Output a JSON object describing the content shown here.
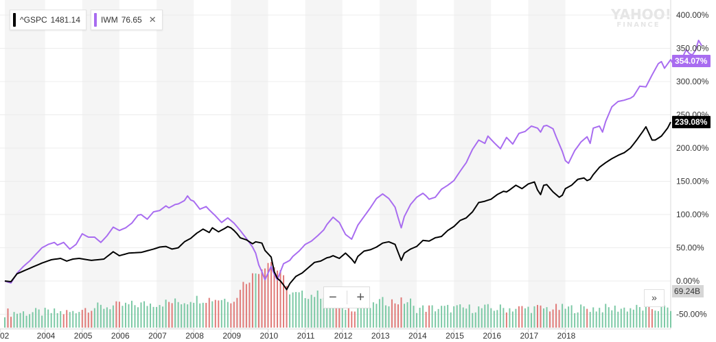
{
  "legend": {
    "items": [
      {
        "ticker": "^GSPC",
        "value": "1481.14",
        "color": "#000000",
        "removable": false
      },
      {
        "ticker": "IWM",
        "value": "76.65",
        "color": "#a86cf0",
        "removable": true
      }
    ],
    "close_icon": "close-icon"
  },
  "logo": {
    "line1": "YAHOO!",
    "line2": "FINANCE"
  },
  "zoom": {
    "minus": "−",
    "plus": "+"
  },
  "scroll_label": "»",
  "last_labels": {
    "iwm": "354.07%",
    "gspc": "239.08%",
    "volume": "69.24B"
  },
  "chart_data": {
    "type": "line",
    "x_start": "2002-12",
    "x_end": "2018-06",
    "x_interval": "month",
    "x_tick_labels": [
      "02",
      "2004",
      "2005",
      "2006",
      "2007",
      "2008",
      "2009",
      "2010",
      "2011",
      "2012",
      "2013",
      "2014",
      "2015",
      "2016",
      "2017",
      "2018"
    ],
    "y_tick_labels": [
      "400.00%",
      "350.00%",
      "300.00%",
      "250.00%",
      "200.00%",
      "150.00%",
      "100.00%",
      "50.00%",
      "0.00%",
      "-50.00%"
    ],
    "ylim": [
      -50,
      400
    ],
    "y_unit": "%",
    "series": [
      {
        "name": "^GSPC",
        "color": "#000000",
        "anchors": [
          [
            0,
            0
          ],
          [
            2,
            -1
          ],
          [
            4,
            11
          ],
          [
            6,
            15
          ],
          [
            8,
            19
          ],
          [
            12,
            27
          ],
          [
            15,
            32
          ],
          [
            18,
            34
          ],
          [
            20,
            30
          ],
          [
            22,
            33
          ],
          [
            24,
            34
          ],
          [
            28,
            31
          ],
          [
            32,
            33
          ],
          [
            35,
            44
          ],
          [
            37,
            38
          ],
          [
            40,
            42
          ],
          [
            44,
            43
          ],
          [
            48,
            48
          ],
          [
            50,
            51
          ],
          [
            52,
            52
          ],
          [
            54,
            48
          ],
          [
            56,
            50
          ],
          [
            58,
            59
          ],
          [
            60,
            64
          ],
          [
            62,
            72
          ],
          [
            64,
            78
          ],
          [
            66,
            73
          ],
          [
            67,
            80
          ],
          [
            69,
            74
          ],
          [
            71,
            79
          ],
          [
            72,
            82
          ],
          [
            73,
            80
          ],
          [
            74,
            76
          ],
          [
            75,
            71
          ],
          [
            76,
            65
          ],
          [
            78,
            62
          ],
          [
            80,
            56
          ],
          [
            81,
            59
          ],
          [
            83,
            57
          ],
          [
            84,
            46
          ],
          [
            86,
            36
          ],
          [
            87,
            14
          ],
          [
            88,
            4
          ],
          [
            89,
            0
          ],
          [
            90,
            -6
          ],
          [
            91,
            -13
          ],
          [
            92,
            -4
          ],
          [
            94,
            7
          ],
          [
            96,
            12
          ],
          [
            98,
            20
          ],
          [
            100,
            28
          ],
          [
            102,
            30
          ],
          [
            104,
            35
          ],
          [
            105,
            36
          ],
          [
            106,
            38
          ],
          [
            108,
            34
          ],
          [
            110,
            42
          ],
          [
            112,
            33
          ],
          [
            113,
            27
          ],
          [
            114,
            37
          ],
          [
            116,
            45
          ],
          [
            118,
            47
          ],
          [
            120,
            51
          ],
          [
            122,
            57
          ],
          [
            124,
            59
          ],
          [
            126,
            55
          ],
          [
            127,
            43
          ],
          [
            128,
            31
          ],
          [
            129,
            42
          ],
          [
            131,
            48
          ],
          [
            133,
            52
          ],
          [
            135,
            61
          ],
          [
            137,
            60
          ],
          [
            139,
            65
          ],
          [
            141,
            67
          ],
          [
            143,
            76
          ],
          [
            145,
            82
          ],
          [
            147,
            91
          ],
          [
            149,
            95
          ],
          [
            151,
            104
          ],
          [
            153,
            118
          ],
          [
            155,
            120
          ],
          [
            157,
            123
          ],
          [
            159,
            130
          ],
          [
            161,
            135
          ],
          [
            162,
            134
          ],
          [
            163,
            137
          ],
          [
            165,
            144
          ],
          [
            167,
            139
          ],
          [
            169,
            146
          ],
          [
            171,
            149
          ],
          [
            172,
            137
          ],
          [
            173,
            130
          ],
          [
            174,
            144
          ],
          [
            175,
            145
          ],
          [
            177,
            134
          ],
          [
            179,
            126
          ],
          [
            180,
            129
          ],
          [
            181,
            139
          ],
          [
            183,
            144
          ],
          [
            185,
            153
          ],
          [
            187,
            155
          ],
          [
            188,
            151
          ],
          [
            189,
            153
          ],
          [
            190,
            160
          ],
          [
            192,
            171
          ],
          [
            194,
            178
          ],
          [
            196,
            184
          ],
          [
            198,
            189
          ],
          [
            200,
            193
          ],
          [
            202,
            200
          ],
          [
            204,
            212
          ],
          [
            206,
            225
          ],
          [
            207,
            232
          ],
          [
            209,
            212
          ],
          [
            210,
            212
          ],
          [
            212,
            218
          ],
          [
            214,
            230
          ],
          [
            215,
            239.08
          ]
        ]
      },
      {
        "name": "IWM",
        "color": "#a86cf0",
        "anchors": [
          [
            0,
            0
          ],
          [
            2,
            -3
          ],
          [
            4,
            12
          ],
          [
            6,
            22
          ],
          [
            8,
            30
          ],
          [
            10,
            40
          ],
          [
            12,
            50
          ],
          [
            14,
            55
          ],
          [
            16,
            58
          ],
          [
            17,
            54
          ],
          [
            19,
            58
          ],
          [
            21,
            48
          ],
          [
            23,
            55
          ],
          [
            25,
            71
          ],
          [
            27,
            66
          ],
          [
            29,
            66
          ],
          [
            31,
            58
          ],
          [
            33,
            68
          ],
          [
            35,
            81
          ],
          [
            37,
            76
          ],
          [
            39,
            80
          ],
          [
            41,
            87
          ],
          [
            43,
            99
          ],
          [
            44,
            100
          ],
          [
            46,
            93
          ],
          [
            48,
            104
          ],
          [
            50,
            106
          ],
          [
            52,
            113
          ],
          [
            53,
            110
          ],
          [
            55,
            115
          ],
          [
            56,
            116
          ],
          [
            58,
            121
          ],
          [
            59,
            128
          ],
          [
            60,
            122
          ],
          [
            61,
            120
          ],
          [
            63,
            108
          ],
          [
            65,
            112
          ],
          [
            66,
            107
          ],
          [
            68,
            98
          ],
          [
            70,
            88
          ],
          [
            72,
            95
          ],
          [
            74,
            87
          ],
          [
            76,
            76
          ],
          [
            78,
            64
          ],
          [
            80,
            51
          ],
          [
            81,
            42
          ],
          [
            82,
            24
          ],
          [
            83,
            14
          ],
          [
            84,
            2
          ],
          [
            85,
            12
          ],
          [
            86,
            22
          ],
          [
            87,
            10
          ],
          [
            88,
            2
          ],
          [
            90,
            26
          ],
          [
            92,
            31
          ],
          [
            93,
            37
          ],
          [
            95,
            45
          ],
          [
            97,
            55
          ],
          [
            99,
            60
          ],
          [
            101,
            68
          ],
          [
            103,
            77
          ],
          [
            104,
            85
          ],
          [
            106,
            96
          ],
          [
            108,
            88
          ],
          [
            110,
            70
          ],
          [
            112,
            63
          ],
          [
            114,
            84
          ],
          [
            116,
            97
          ],
          [
            118,
            110
          ],
          [
            120,
            124
          ],
          [
            122,
            131
          ],
          [
            124,
            124
          ],
          [
            126,
            111
          ],
          [
            127,
            95
          ],
          [
            128,
            80
          ],
          [
            129,
            97
          ],
          [
            131,
            115
          ],
          [
            133,
            126
          ],
          [
            135,
            132
          ],
          [
            136,
            128
          ],
          [
            137,
            123
          ],
          [
            139,
            126
          ],
          [
            141,
            138
          ],
          [
            143,
            144
          ],
          [
            145,
            151
          ],
          [
            147,
            165
          ],
          [
            149,
            178
          ],
          [
            151,
            198
          ],
          [
            152,
            205
          ],
          [
            153,
            212
          ],
          [
            155,
            207
          ],
          [
            156,
            218
          ],
          [
            158,
            208
          ],
          [
            160,
            199
          ],
          [
            162,
            216
          ],
          [
            164,
            206
          ],
          [
            166,
            222
          ],
          [
            168,
            225
          ],
          [
            170,
            233
          ],
          [
            172,
            230
          ],
          [
            173,
            224
          ],
          [
            174,
            233
          ],
          [
            175,
            234
          ],
          [
            177,
            229
          ],
          [
            178,
            217
          ],
          [
            180,
            195
          ],
          [
            181,
            181
          ],
          [
            182,
            177
          ],
          [
            184,
            196
          ],
          [
            186,
            209
          ],
          [
            188,
            217
          ],
          [
            189,
            207
          ],
          [
            190,
            230
          ],
          [
            192,
            233
          ],
          [
            193,
            224
          ],
          [
            194,
            240
          ],
          [
            196,
            262
          ],
          [
            198,
            270
          ],
          [
            200,
            272
          ],
          [
            202,
            275
          ],
          [
            203,
            278
          ],
          [
            205,
            293
          ],
          [
            207,
            292
          ],
          [
            209,
            310
          ],
          [
            211,
            327
          ],
          [
            212,
            330
          ],
          [
            213,
            320
          ],
          [
            215,
            333
          ],
          [
            216,
            325
          ],
          [
            217,
            338
          ],
          [
            218,
            334
          ],
          [
            219,
            338
          ],
          [
            220,
            348
          ],
          [
            221,
            342
          ],
          [
            222,
            340
          ],
          [
            223,
            347
          ],
          [
            224,
            362
          ],
          [
            225,
            354.07
          ]
        ]
      },
      {
        "name": "Volume",
        "type": "bar",
        "unit": "B",
        "last_value": 69.24
      }
    ]
  }
}
